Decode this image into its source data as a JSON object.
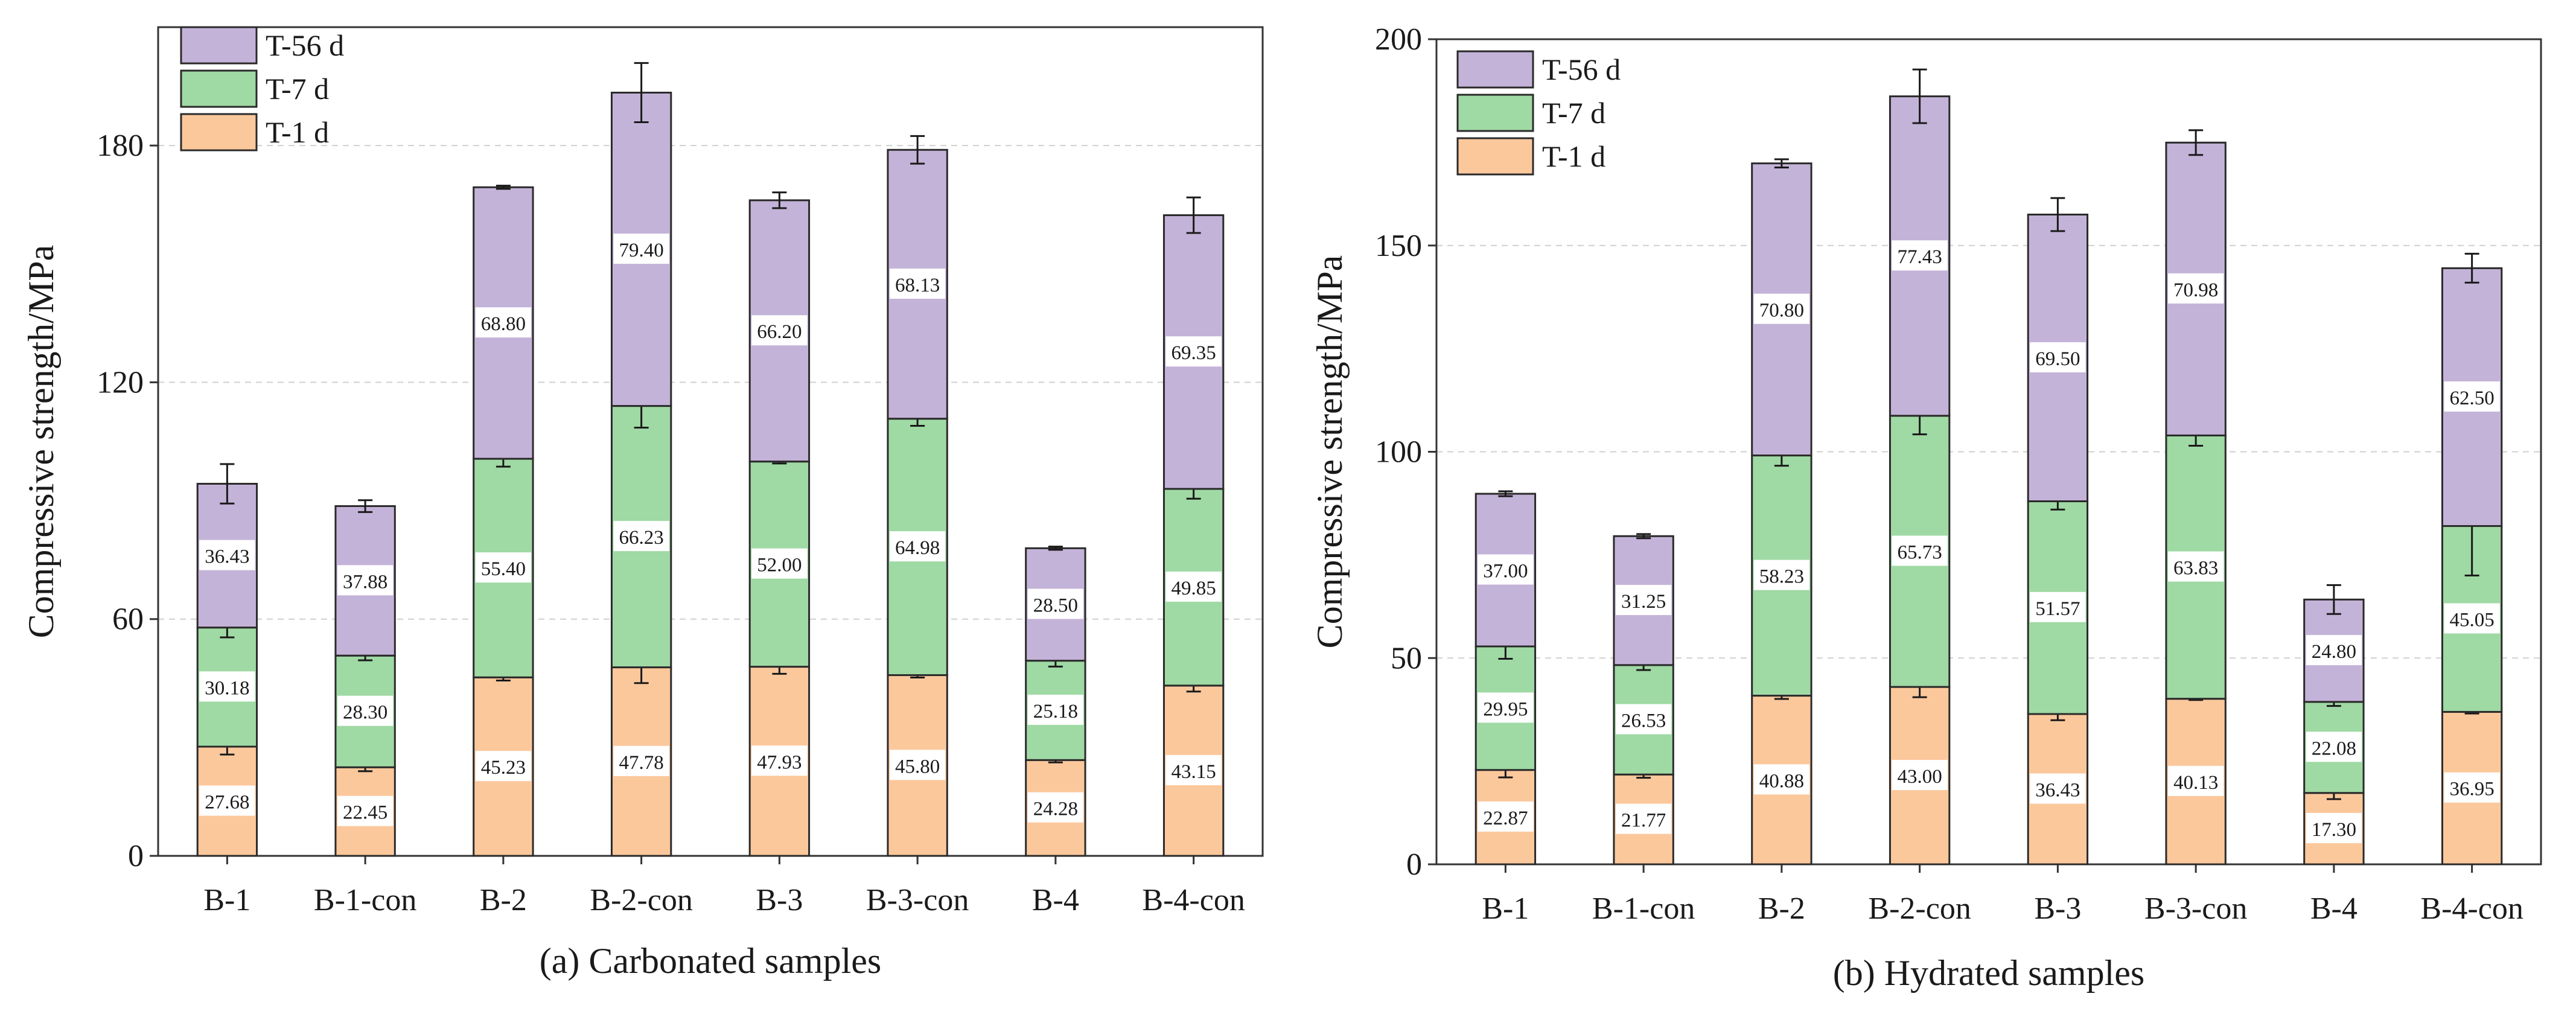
{
  "figure": {
    "legend": [
      "T-56 d",
      "T-7 d",
      "T-1 d"
    ]
  },
  "colors": {
    "T-1 d": "#fbc89c",
    "T-7 d": "#9fd9a4",
    "T-56 d": "#c4b3d8",
    "axis": "#333333",
    "grid": "#d0d0d0"
  },
  "chart_data": [
    {
      "type": "bar",
      "stacked": true,
      "caption": "(a) Carbonated samples",
      "ylabel": "Compressive strength/MPa",
      "xlabel": "",
      "categories": [
        "B-1",
        "B-1-con",
        "B-2",
        "B-2-con",
        "B-3",
        "B-3-con",
        "B-4",
        "B-4-con"
      ],
      "ylim": [
        0,
        210
      ],
      "yticks": [
        0,
        60,
        120,
        180
      ],
      "grid": true,
      "legend_position": "top-left",
      "series": [
        {
          "name": "T-1 d",
          "values": [
            27.68,
            22.45,
            45.23,
            47.78,
            47.93,
            45.8,
            24.28,
            43.15
          ],
          "labels": [
            "27.68",
            "22.45",
            "45.23",
            "47.78",
            "47.93",
            "45.80",
            "24.28",
            "43.15"
          ],
          "errors": [
            2.0,
            1.0,
            0.8,
            4.0,
            1.8,
            0.6,
            0.6,
            1.5
          ]
        },
        {
          "name": "T-7 d",
          "values": [
            30.18,
            28.3,
            55.4,
            66.23,
            52.0,
            64.98,
            25.18,
            49.85
          ],
          "labels": [
            "30.18",
            "28.30",
            "55.40",
            "66.23",
            "52.00",
            "64.98",
            "25.18",
            "49.85"
          ],
          "errors": [
            2.5,
            1.2,
            2.0,
            5.5,
            0.5,
            1.8,
            1.5,
            2.5
          ]
        },
        {
          "name": "T-56 d",
          "values": [
            36.43,
            37.88,
            68.8,
            79.4,
            66.2,
            68.13,
            28.5,
            69.35
          ],
          "labels": [
            "36.43",
            "37.88",
            "68.80",
            "79.40",
            "66.20",
            "68.13",
            "28.50",
            "69.35"
          ],
          "errors": [
            5.0,
            1.5,
            0.4,
            7.5,
            2.0,
            3.5,
            0.4,
            4.5
          ]
        }
      ]
    },
    {
      "type": "bar",
      "stacked": true,
      "caption": "(b) Hydrated samples",
      "ylabel": "Compressive strength/MPa",
      "xlabel": "",
      "categories": [
        "B-1",
        "B-1-con",
        "B-2",
        "B-2-con",
        "B-3",
        "B-3-con",
        "B-4",
        "B-4-con"
      ],
      "ylim": [
        0,
        200
      ],
      "yticks": [
        0,
        50,
        100,
        150,
        200
      ],
      "grid": true,
      "legend_position": "top-left",
      "series": [
        {
          "name": "T-1 d",
          "values": [
            22.87,
            21.77,
            40.88,
            43.0,
            36.43,
            40.13,
            17.3,
            36.95
          ],
          "labels": [
            "22.87",
            "21.77",
            "40.88",
            "43.00",
            "36.43",
            "40.13",
            "17.30",
            "36.95"
          ],
          "errors": [
            1.8,
            0.8,
            0.8,
            2.5,
            1.5,
            0.3,
            1.5,
            0.4
          ]
        },
        {
          "name": "T-7 d",
          "values": [
            29.95,
            26.53,
            58.23,
            65.73,
            51.57,
            63.83,
            22.08,
            45.05
          ],
          "labels": [
            "29.95",
            "26.53",
            "58.23",
            "65.73",
            "51.57",
            "63.83",
            "22.08",
            "45.05"
          ],
          "errors": [
            3.0,
            1.2,
            2.5,
            4.5,
            2.0,
            2.5,
            1.0,
            12.0
          ]
        },
        {
          "name": "T-56 d",
          "values": [
            37.0,
            31.25,
            70.8,
            77.43,
            69.5,
            70.98,
            24.8,
            62.5
          ],
          "labels": [
            "37.00",
            "31.25",
            "70.80",
            "77.43",
            "69.50",
            "70.98",
            "24.80",
            "62.50"
          ],
          "errors": [
            0.6,
            0.5,
            1.0,
            6.5,
            4.0,
            3.0,
            3.5,
            3.5
          ]
        }
      ]
    }
  ]
}
